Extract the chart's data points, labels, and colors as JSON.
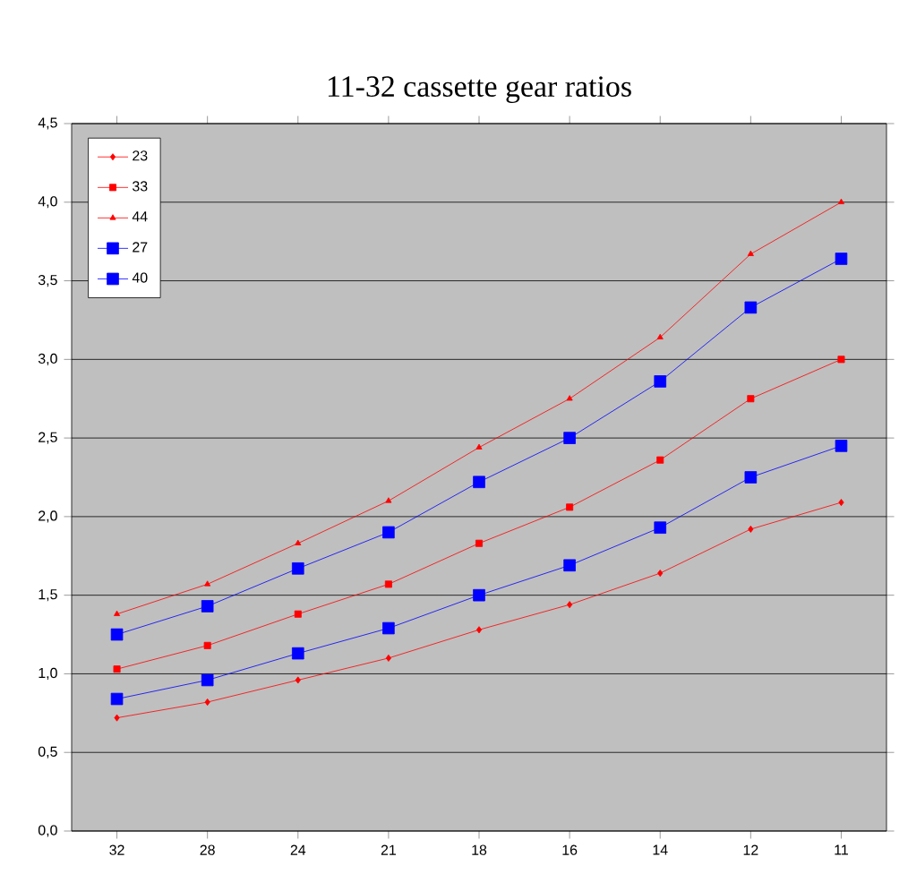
{
  "chart_data": {
    "type": "line",
    "title": "11-32 cassette gear ratios",
    "categories": [
      "32",
      "28",
      "24",
      "21",
      "18",
      "16",
      "14",
      "12",
      "11"
    ],
    "series": [
      {
        "name": "23",
        "color": "#ff0000",
        "marker": "diamond",
        "values": [
          0.72,
          0.82,
          0.96,
          1.1,
          1.28,
          1.44,
          1.64,
          1.92,
          2.09
        ]
      },
      {
        "name": "33",
        "color": "#ff0000",
        "marker": "square",
        "values": [
          1.03,
          1.18,
          1.38,
          1.57,
          1.83,
          2.06,
          2.36,
          2.75,
          3.0
        ]
      },
      {
        "name": "44",
        "color": "#ff0000",
        "marker": "triangle",
        "values": [
          1.38,
          1.57,
          1.83,
          2.1,
          2.44,
          2.75,
          3.14,
          3.67,
          4.0
        ]
      },
      {
        "name": "27",
        "color": "#0000ff",
        "marker": "square",
        "values": [
          0.84,
          0.96,
          1.13,
          1.29,
          1.5,
          1.69,
          1.93,
          2.25,
          2.45
        ]
      },
      {
        "name": "40",
        "color": "#0000ff",
        "marker": "square",
        "values": [
          1.25,
          1.43,
          1.67,
          1.9,
          2.22,
          2.5,
          2.86,
          3.33,
          3.64
        ]
      }
    ],
    "ylim": [
      0,
      4.5
    ],
    "yticks": [
      {
        "value": 0,
        "label": "0,0"
      },
      {
        "value": 0.5,
        "label": "0,5"
      },
      {
        "value": 1,
        "label": "1,0"
      },
      {
        "value": 1.5,
        "label": "1,5"
      },
      {
        "value": 2,
        "label": "2,0"
      },
      {
        "value": 2.5,
        "label": "2,5"
      },
      {
        "value": 3,
        "label": "3,0"
      },
      {
        "value": 3.5,
        "label": "3,5"
      },
      {
        "value": 4,
        "label": "4,0"
      },
      {
        "value": 4.5,
        "label": "4,5"
      }
    ],
    "grid": "y",
    "legend": "top left"
  }
}
